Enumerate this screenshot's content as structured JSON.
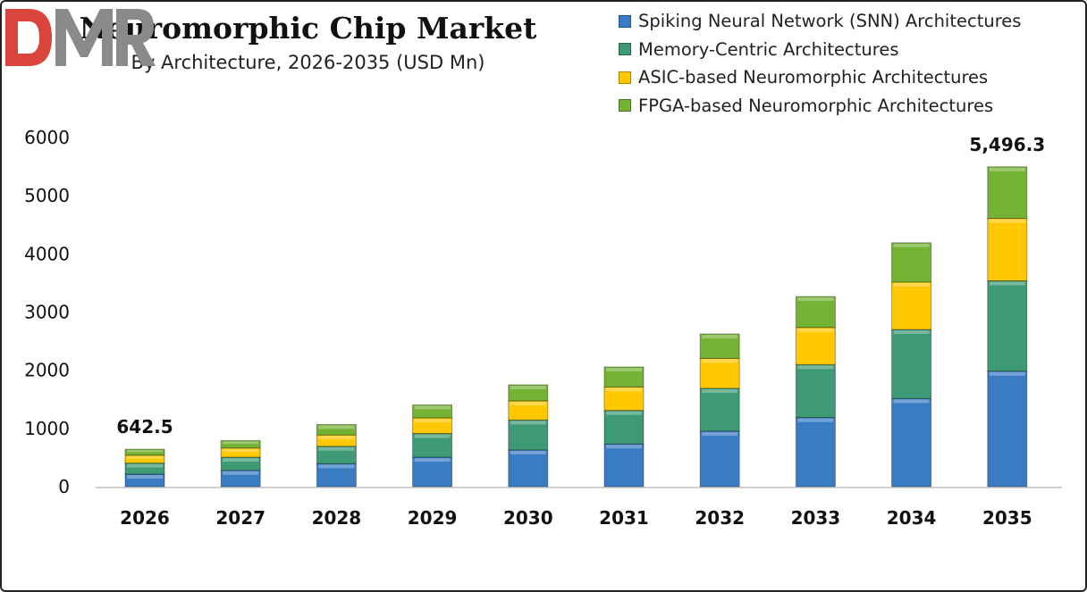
{
  "chart_data": {
    "type": "bar",
    "stacked": true,
    "title": "Neuromorphic Chip Market",
    "subtitle": "By Architecture, 2026-2035 (USD Mn)",
    "categories": [
      "2026",
      "2027",
      "2028",
      "2029",
      "2030",
      "2031",
      "2032",
      "2033",
      "2034",
      "2035"
    ],
    "series": [
      {
        "name": "Spiking Neural Network (SNN) Architectures",
        "color": "#3a7cc4",
        "values": [
          215,
          280,
          394,
          506,
          631,
          733,
          953,
          1188,
          1514,
          1985
        ]
      },
      {
        "name": "Memory-Centric Architectures",
        "color": "#3d9a74",
        "values": [
          190,
          226,
          300,
          407,
          515,
          577,
          737,
          909,
          1186,
          1552
        ]
      },
      {
        "name": "ASIC-based Neuromorphic Architectures",
        "color": "#ffc800",
        "values": [
          135,
          158,
          194,
          269,
          328,
          403,
          514,
          639,
          817,
          1073
        ]
      },
      {
        "name": "FPGA-based Neuromorphic Architectures",
        "color": "#74b234",
        "values": [
          102.5,
          128,
          180,
          223,
          276,
          344,
          420,
          531,
          674,
          886.3
        ]
      }
    ],
    "data_labels": [
      {
        "category": "2026",
        "text": "642.5"
      },
      {
        "category": "2035",
        "text": "5,496.3"
      }
    ],
    "yticks": [
      "0",
      "1000",
      "2000",
      "3000",
      "4000",
      "5000",
      "6000"
    ],
    "ylim": [
      0,
      6000
    ],
    "grid": false,
    "legend": "top-right",
    "xlabel": "",
    "ylabel": ""
  },
  "logo": {
    "text": "DMR",
    "colors": [
      "#d9443b",
      "#888888"
    ]
  }
}
